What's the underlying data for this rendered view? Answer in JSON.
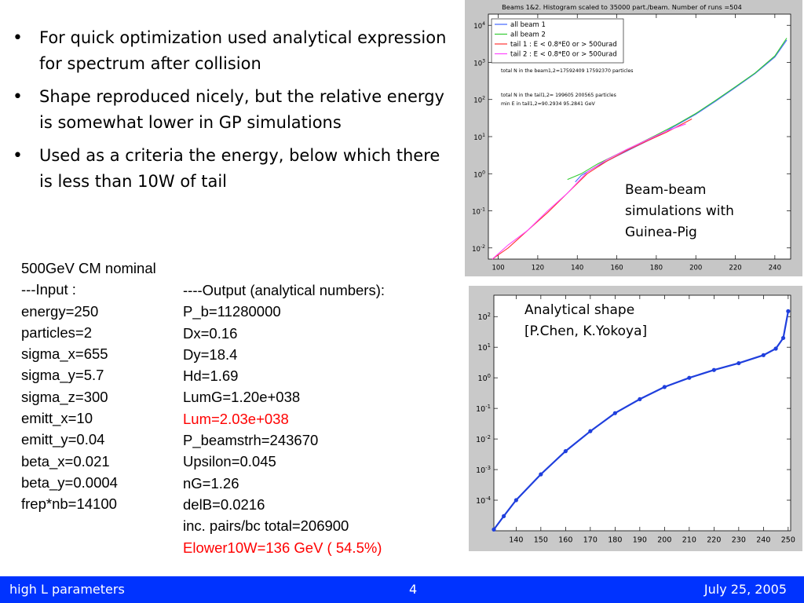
{
  "bullets": [
    "For quick optimization used analytical expression for spectrum after collision",
    "Shape reproduced nicely, but the relative energy is somewhat lower in GP simulations",
    "Used as a criteria the energy, below which there is less than 10W of tail"
  ],
  "input_block": {
    "heading": "500GeV CM nominal",
    "label": "---Input :",
    "lines": [
      "energy=250",
      "particles=2",
      "sigma_x=655",
      "sigma_y=5.7",
      "sigma_z=300",
      "emitt_x=10",
      "emitt_y=0.04",
      "beta_x=0.021",
      "beta_y=0.0004",
      "frep*nb=14100"
    ]
  },
  "output_block": {
    "label": "----Output  (analytical numbers):",
    "lines": [
      "P_b=11280000",
      "Dx=0.16",
      "Dy=18.4",
      "Hd=1.69",
      "LumG=1.20e+038",
      "Lum=2.03e+038",
      "P_beamstrh=243670",
      "Upsilon=0.045",
      "nG=1.26",
      "delB=0.0216",
      "inc. pairs/bc total=206900",
      "Elower10W=136 GeV   ( 54.5%)"
    ],
    "highlight_color": "#ff0000"
  },
  "captions": {
    "top_plot": [
      "Beam-beam",
      "simulations with",
      "Guinea-Pig"
    ],
    "bottom_plot": [
      "Analytical shape",
      "[P.Chen, K.Yokoya]"
    ]
  },
  "footer": {
    "left": "high L parameters",
    "center": "4",
    "right": "July 25, 2005",
    "bg_color": "#0033ff"
  },
  "chart_data": [
    {
      "type": "line",
      "title": "Beams 1&2. Histogram scaled to 35000 part./beam. Number of runs =504",
      "yscale": "log",
      "xlim": [
        95,
        248
      ],
      "ylim": [
        0.005,
        20000
      ],
      "x_ticks": [
        100,
        120,
        140,
        160,
        180,
        200,
        220,
        240
      ],
      "y_ticks": [
        "10^-2",
        "10^-1",
        "10^0",
        "10^1",
        "10^2",
        "10^3",
        "10^4"
      ],
      "legend_position": "top-left",
      "series": [
        {
          "name": "all beam 1",
          "color": "#4466ff",
          "x": [
            139,
            142,
            150,
            160,
            170,
            180,
            190,
            200,
            210,
            220,
            230,
            240,
            246
          ],
          "y": [
            0.6,
            0.9,
            1.6,
            3,
            5.5,
            10,
            20,
            40,
            90,
            210,
            500,
            1400,
            4000
          ]
        },
        {
          "name": "all beam 2",
          "color": "#33cc33",
          "x": [
            135,
            142,
            150,
            160,
            170,
            180,
            190,
            200,
            210,
            220,
            230,
            240,
            246
          ],
          "y": [
            0.7,
            1,
            1.8,
            3.3,
            6,
            11,
            21,
            42,
            95,
            220,
            520,
            1500,
            4500
          ]
        },
        {
          "name": "tail 1 : E < 0.8*E0 or > 500urad",
          "color": "#ff3333",
          "x": [
            97,
            105,
            115,
            125,
            135,
            145,
            155,
            165,
            175,
            185,
            198
          ],
          "y": [
            0.005,
            0.01,
            0.03,
            0.09,
            0.3,
            1,
            2.2,
            4.2,
            7.5,
            13,
            30
          ]
        },
        {
          "name": "tail 2 : E < 0.8*E0 or > 500urad",
          "color": "#ff44ff",
          "x": [
            97,
            105,
            115,
            125,
            135,
            145,
            155,
            165,
            175,
            185,
            195
          ],
          "y": [
            0.005,
            0.012,
            0.03,
            0.1,
            0.3,
            1.1,
            2.4,
            4.5,
            8,
            14,
            22
          ]
        }
      ],
      "annotations": [
        "total N in the beam1,2=17592409 17592370 particles",
        "total N in the tail1,2= 199605 200565 particles",
        "min E in tail1,2=90.2934 95.2841 GeV"
      ]
    },
    {
      "type": "line",
      "yscale": "log",
      "xlim": [
        131,
        251
      ],
      "ylim": [
        1e-05,
        500
      ],
      "x_ticks": [
        140,
        150,
        160,
        170,
        180,
        190,
        200,
        210,
        220,
        230,
        240,
        250
      ],
      "y_ticks": [
        "10^-4",
        "10^-3",
        "10^-2",
        "10^-1",
        "10^0",
        "10^1",
        "10^2"
      ],
      "series": [
        {
          "color": "#1f3fdd",
          "x": [
            131,
            135,
            140,
            150,
            160,
            170,
            180,
            190,
            200,
            210,
            220,
            230,
            240,
            245,
            248,
            250
          ],
          "y": [
            1.1e-05,
            3e-05,
            0.0001,
            0.0007,
            0.004,
            0.018,
            0.07,
            0.2,
            0.5,
            1,
            1.8,
            3,
            5.5,
            9,
            20,
            150
          ]
        }
      ]
    }
  ]
}
